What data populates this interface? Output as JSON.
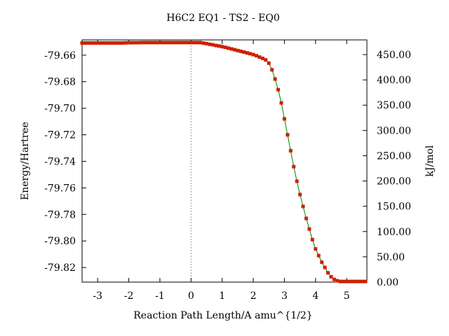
{
  "chart_data": {
    "type": "line",
    "title": "H6C2    EQ1 - TS2 - EQ0",
    "xlabel": "Reaction  Path  Length/A  amu^{1/2}",
    "ylabel": "Energy/Hartree",
    "y2label": "kJ/mol",
    "xlim": [
      -3.5,
      5.65
    ],
    "ylim": [
      -79.831,
      -79.6485
    ],
    "y2lim": [
      0,
      479.1
    ],
    "x_ticks": [
      -3,
      -2,
      -1,
      0,
      1,
      2,
      3,
      4,
      5
    ],
    "x_tick_labels": [
      "-3",
      "-2",
      "-1",
      "0",
      "1",
      "2",
      "3",
      "4",
      "5"
    ],
    "y_ticks": [
      -79.66,
      -79.68,
      -79.7,
      -79.72,
      -79.74,
      -79.76,
      -79.78,
      -79.8,
      -79.82
    ],
    "y_tick_labels": [
      "-79.66",
      "-79.68",
      "-79.70",
      "-79.72",
      "-79.74",
      "-79.76",
      "-79.78",
      "-79.80",
      "-79.82"
    ],
    "y2_ticks": [
      0,
      50,
      100,
      150,
      200,
      250,
      300,
      350,
      400,
      450
    ],
    "y2_tick_labels": [
      "0.00",
      "50.00",
      "100.00",
      "150.00",
      "200.00",
      "250.00",
      "300.00",
      "350.00",
      "400.00",
      "450.00"
    ],
    "vline_x": 0,
    "grid": false,
    "line_color": "#008000",
    "marker_color": "#cc2200",
    "series": [
      {
        "x": [
          -3.5,
          -3.4,
          -3.3,
          -3.2,
          -3.1,
          -3.0,
          -2.9,
          -2.8,
          -2.7,
          -2.6,
          -2.5,
          -2.4,
          -2.3,
          -2.2,
          -2.1,
          -2.0,
          -1.9,
          -1.8,
          -1.7,
          -1.6,
          -1.5,
          -1.4,
          -1.3,
          -1.2,
          -1.1,
          -1.0,
          -0.9,
          -0.8,
          -0.7,
          -0.6,
          -0.5,
          -0.4,
          -0.3,
          -0.2,
          -0.1,
          0.0,
          0.1,
          0.2,
          0.3,
          0.4,
          0.5,
          0.6,
          0.7,
          0.8,
          0.9,
          1.0,
          1.1,
          1.2,
          1.3,
          1.4,
          1.5,
          1.6,
          1.7,
          1.8,
          1.9,
          2.0,
          2.1,
          2.2,
          2.3,
          2.4,
          2.5,
          2.6,
          2.7,
          2.8,
          2.9,
          3.0,
          3.1,
          3.2,
          3.3,
          3.4,
          3.5,
          3.6,
          3.7,
          3.8,
          3.9,
          4.0,
          4.1,
          4.2,
          4.3,
          4.4,
          4.5,
          4.6,
          4.7,
          4.8,
          4.9,
          5.0,
          5.1,
          5.2,
          5.3,
          5.4,
          5.5,
          5.6
        ],
        "y": [
          -79.6508,
          -79.6508,
          -79.6508,
          -79.6508,
          -79.6508,
          -79.6508,
          -79.6508,
          -79.6508,
          -79.6508,
          -79.6508,
          -79.6508,
          -79.6508,
          -79.6508,
          -79.6508,
          -79.6507,
          -79.6506,
          -79.6506,
          -79.6506,
          -79.6506,
          -79.6505,
          -79.6505,
          -79.6505,
          -79.6505,
          -79.6505,
          -79.6505,
          -79.6505,
          -79.6505,
          -79.6505,
          -79.6505,
          -79.6505,
          -79.6505,
          -79.6505,
          -79.6505,
          -79.6505,
          -79.6505,
          -79.6505,
          -79.6505,
          -79.6505,
          -79.6505,
          -79.6509,
          -79.6513,
          -79.6518,
          -79.6522,
          -79.6527,
          -79.6531,
          -79.6536,
          -79.6541,
          -79.6547,
          -79.6553,
          -79.6559,
          -79.6565,
          -79.6571,
          -79.6577,
          -79.6583,
          -79.6589,
          -79.6596,
          -79.6604,
          -79.6614,
          -79.6624,
          -79.6636,
          -79.666,
          -79.671,
          -79.678,
          -79.686,
          -79.696,
          -79.708,
          -79.72,
          -79.732,
          -79.744,
          -79.755,
          -79.765,
          -79.774,
          -79.783,
          -79.791,
          -79.799,
          -79.806,
          -79.811,
          -79.816,
          -79.82,
          -79.824,
          -79.827,
          -79.829,
          -79.83,
          -79.8305,
          -79.8305,
          -79.8305,
          -79.8305,
          -79.8305,
          -79.8305,
          -79.8305,
          -79.8305,
          -79.8305
        ]
      }
    ]
  }
}
